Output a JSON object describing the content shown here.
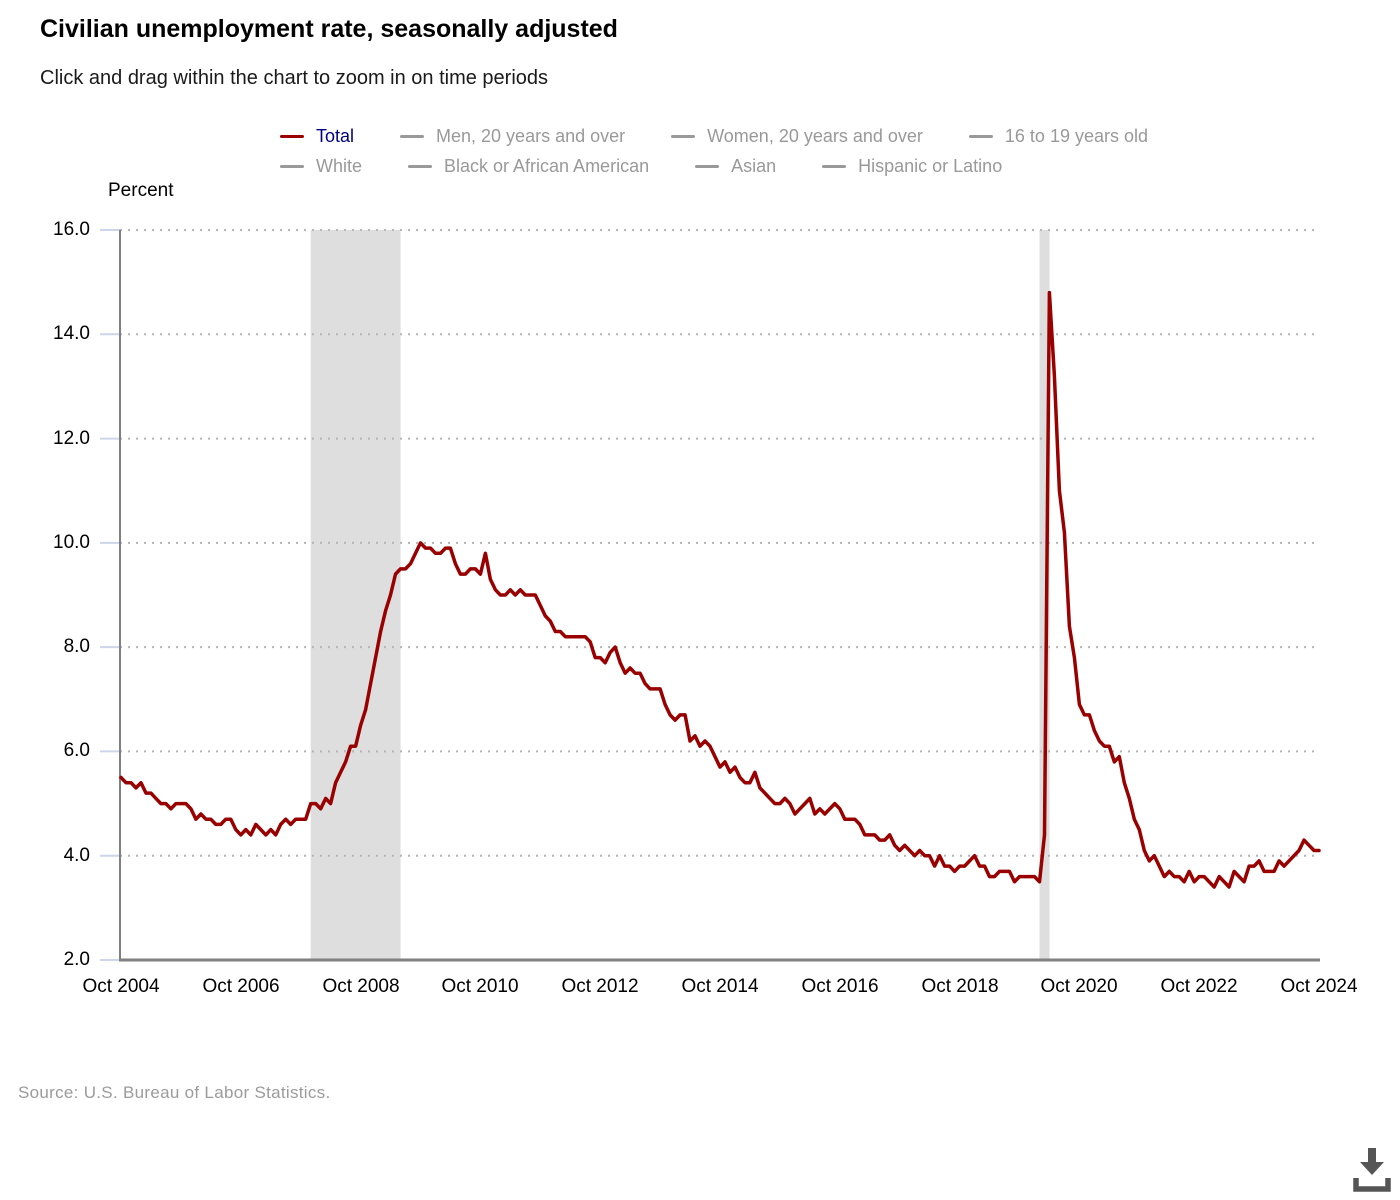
{
  "header": {
    "title": "Civilian unemployment rate, seasonally adjusted",
    "subtitle": "Click and drag within the chart to zoom in on time periods"
  },
  "legend": {
    "rows": [
      [
        {
          "label": "Total",
          "active": true
        },
        {
          "label": "Men, 20 years and over",
          "active": false
        },
        {
          "label": "Women, 20 years and over",
          "active": false
        },
        {
          "label": "16 to 19 years old",
          "active": false
        }
      ],
      [
        {
          "label": "White",
          "active": false
        },
        {
          "label": "Black or African American",
          "active": false
        },
        {
          "label": "Asian",
          "active": false
        },
        {
          "label": "Hispanic or Latino",
          "active": false
        }
      ]
    ]
  },
  "chart_data": {
    "type": "line",
    "title": "Civilian unemployment rate, seasonally adjusted",
    "ylabel": "Percent",
    "ylim": [
      2.0,
      16.0
    ],
    "grid": "dotted-horizontal",
    "y_ticks": [
      2,
      4,
      6,
      8,
      10,
      12,
      14,
      16
    ],
    "y_tick_labels": [
      "2.0",
      "4.0",
      "6.0",
      "8.0",
      "10.0",
      "12.0",
      "14.0",
      "16.0"
    ],
    "x_ticks": [
      {
        "label": "Oct 2004",
        "month_index": 0
      },
      {
        "label": "Oct 2006",
        "month_index": 24
      },
      {
        "label": "Oct 2008",
        "month_index": 48
      },
      {
        "label": "Oct 2010",
        "month_index": 72
      },
      {
        "label": "Oct 2012",
        "month_index": 96
      },
      {
        "label": "Oct 2014",
        "month_index": 120
      },
      {
        "label": "Oct 2016",
        "month_index": 144
      },
      {
        "label": "Oct 2018",
        "month_index": 168
      },
      {
        "label": "Oct 2020",
        "month_index": 192
      },
      {
        "label": "Oct 2022",
        "month_index": 216
      },
      {
        "label": "Oct 2024",
        "month_index": 240
      }
    ],
    "recession_bands": [
      {
        "from": "Dec 2007",
        "to": "Jun 2009",
        "from_index": 38,
        "to_index": 56
      },
      {
        "from": "Feb 2020",
        "to": "Apr 2020",
        "from_index": 184,
        "to_index": 186
      }
    ],
    "series": [
      {
        "name": "Total",
        "frequency": "monthly",
        "start": "Oct 2004",
        "end": "Oct 2024",
        "values": [
          5.5,
          5.4,
          5.4,
          5.3,
          5.4,
          5.2,
          5.2,
          5.1,
          5.0,
          5.0,
          4.9,
          5.0,
          5.0,
          5.0,
          4.9,
          4.7,
          4.8,
          4.7,
          4.7,
          4.6,
          4.6,
          4.7,
          4.7,
          4.5,
          4.4,
          4.5,
          4.4,
          4.6,
          4.5,
          4.4,
          4.5,
          4.4,
          4.6,
          4.7,
          4.6,
          4.7,
          4.7,
          4.7,
          5.0,
          5.0,
          4.9,
          5.1,
          5.0,
          5.4,
          5.6,
          5.8,
          6.1,
          6.1,
          6.5,
          6.8,
          7.3,
          7.8,
          8.3,
          8.7,
          9.0,
          9.4,
          9.5,
          9.5,
          9.6,
          9.8,
          10.0,
          9.9,
          9.9,
          9.8,
          9.8,
          9.9,
          9.9,
          9.6,
          9.4,
          9.4,
          9.5,
          9.5,
          9.4,
          9.8,
          9.3,
          9.1,
          9.0,
          9.0,
          9.1,
          9.0,
          9.1,
          9.0,
          9.0,
          9.0,
          8.8,
          8.6,
          8.5,
          8.3,
          8.3,
          8.2,
          8.2,
          8.2,
          8.2,
          8.2,
          8.1,
          7.8,
          7.8,
          7.7,
          7.9,
          8.0,
          7.7,
          7.5,
          7.6,
          7.5,
          7.5,
          7.3,
          7.2,
          7.2,
          7.2,
          6.9,
          6.7,
          6.6,
          6.7,
          6.7,
          6.2,
          6.3,
          6.1,
          6.2,
          6.1,
          5.9,
          5.7,
          5.8,
          5.6,
          5.7,
          5.5,
          5.4,
          5.4,
          5.6,
          5.3,
          5.2,
          5.1,
          5.0,
          5.0,
          5.1,
          5.0,
          4.8,
          4.9,
          5.0,
          5.1,
          4.8,
          4.9,
          4.8,
          4.9,
          5.0,
          4.9,
          4.7,
          4.7,
          4.7,
          4.6,
          4.4,
          4.4,
          4.4,
          4.3,
          4.3,
          4.4,
          4.2,
          4.1,
          4.2,
          4.1,
          4.0,
          4.1,
          4.0,
          4.0,
          3.8,
          4.0,
          3.8,
          3.8,
          3.7,
          3.8,
          3.8,
          3.9,
          4.0,
          3.8,
          3.8,
          3.6,
          3.6,
          3.7,
          3.7,
          3.7,
          3.5,
          3.6,
          3.6,
          3.6,
          3.6,
          3.5,
          4.4,
          14.8,
          13.2,
          11.0,
          10.2,
          8.4,
          7.8,
          6.9,
          6.7,
          6.7,
          6.4,
          6.2,
          6.1,
          6.1,
          5.8,
          5.9,
          5.4,
          5.1,
          4.7,
          4.5,
          4.1,
          3.9,
          4.0,
          3.8,
          3.6,
          3.7,
          3.6,
          3.6,
          3.5,
          3.7,
          3.5,
          3.6,
          3.6,
          3.5,
          3.4,
          3.6,
          3.5,
          3.4,
          3.7,
          3.6,
          3.5,
          3.8,
          3.8,
          3.9,
          3.7,
          3.7,
          3.7,
          3.9,
          3.8,
          3.9,
          4.0,
          4.1,
          4.3,
          4.2,
          4.1,
          4.1
        ]
      }
    ]
  },
  "source": {
    "text": "Source: U.S. Bureau of Labor Statistics."
  },
  "colors": {
    "series_total": "#990000",
    "legend_active_text": "#000080",
    "legend_inactive": "#999999",
    "gridline": "#b5b5b5",
    "axis_line": "#808080",
    "axis_tick": "#ccd6eb",
    "recession_band": "#dedede",
    "source_text": "#9b9b9b",
    "download_icon": "#555555"
  }
}
